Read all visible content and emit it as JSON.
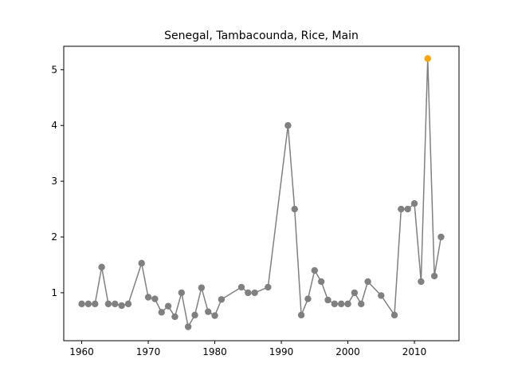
{
  "chart_data": {
    "type": "line",
    "title": "Senegal, Tambacounda, Rice, Main",
    "xlabel": "",
    "ylabel": "",
    "xlim": [
      1957.3,
      2016.7
    ],
    "ylim": [
      0.14,
      5.42
    ],
    "xticks": [
      1960,
      1970,
      1980,
      1990,
      2000,
      2010
    ],
    "yticks": [
      1,
      2,
      3,
      4,
      5
    ],
    "grid": false,
    "legend": "none",
    "series": [
      {
        "color": "#808080",
        "highlight_color": "#ffa500",
        "x": [
          1960,
          1961,
          1962,
          1963,
          1964,
          1965,
          1966,
          1967,
          1969,
          1970,
          1971,
          1972,
          1973,
          1974,
          1975,
          1976,
          1977,
          1978,
          1979,
          1980,
          1981,
          1984,
          1985,
          1986,
          1988,
          1991,
          1992,
          1993,
          1994,
          1995,
          1996,
          1997,
          1998,
          1999,
          2000,
          2001,
          2002,
          2003,
          2005,
          2007,
          2008,
          2009,
          2010,
          2011,
          2012,
          2013,
          2014
        ],
        "y": [
          0.8,
          0.8,
          0.8,
          1.46,
          0.8,
          0.8,
          0.77,
          0.8,
          1.53,
          0.92,
          0.89,
          0.65,
          0.76,
          0.57,
          1.0,
          0.39,
          0.6,
          1.09,
          0.66,
          0.59,
          0.88,
          1.1,
          1.0,
          1.0,
          1.1,
          4.0,
          2.5,
          0.6,
          0.89,
          1.4,
          1.2,
          0.87,
          0.8,
          0.8,
          0.8,
          1.0,
          0.8,
          1.2,
          0.95,
          0.6,
          2.5,
          2.5,
          2.6,
          1.2,
          5.2,
          1.3,
          2.0
        ],
        "highlight_x": 2012
      }
    ]
  }
}
